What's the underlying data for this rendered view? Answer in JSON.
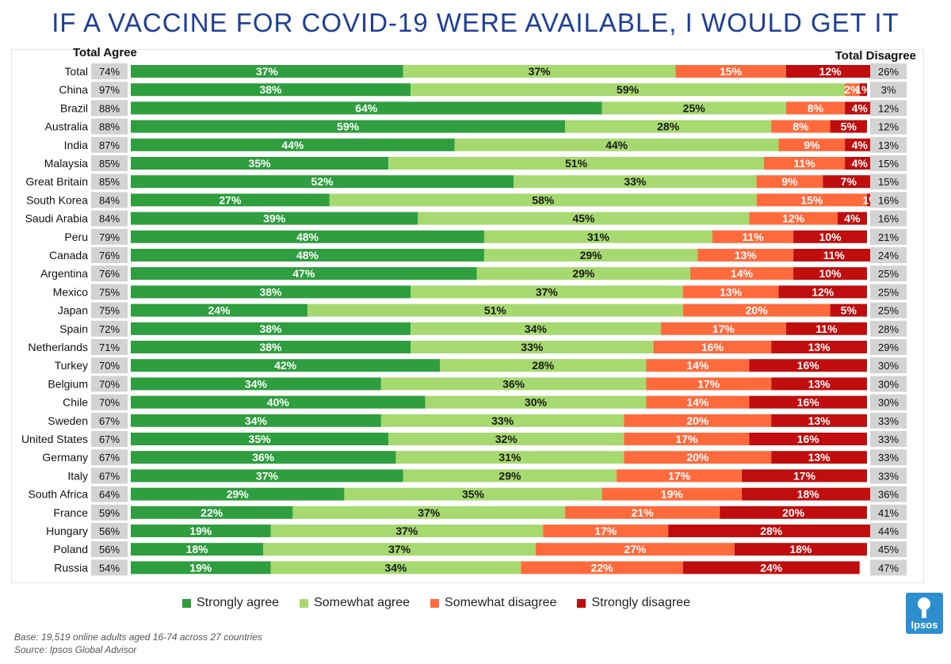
{
  "title": "IF A VACCINE FOR COVID-19 WERE AVAILABLE, I WOULD GET IT",
  "header_total_agree": "Total Agree",
  "header_total_disagree": "Total Disagree",
  "legend": [
    {
      "label": "Strongly agree",
      "color": "#2e9e3e"
    },
    {
      "label": "Somewhat agree",
      "color": "#a6d96f"
    },
    {
      "label": "Somewhat disagree",
      "color": "#ff6a3d"
    },
    {
      "label": "Strongly disagree",
      "color": "#c00d0d"
    }
  ],
  "footnote_base": "Base: 19,519 online adults aged 16-74 across 27 countries",
  "footnote_source": "Source: Ipsos Global Advisor",
  "logo_text": "Ipsos",
  "chart_data": {
    "type": "bar",
    "orientation": "horizontal",
    "stacked": true,
    "xlim": [
      0,
      100
    ],
    "categories": [
      "Total",
      "China",
      "Brazil",
      "Australia",
      "India",
      "Malaysia",
      "Great Britain",
      "South Korea",
      "Saudi Arabia",
      "Peru",
      "Canada",
      "Argentina",
      "Mexico",
      "Japan",
      "Spain",
      "Netherlands",
      "Turkey",
      "Belgium",
      "Chile",
      "Sweden",
      "United States",
      "Germany",
      "Italy",
      "South Africa",
      "France",
      "Hungary",
      "Poland",
      "Russia"
    ],
    "total_agree": [
      "74%",
      "97%",
      "88%",
      "88%",
      "87%",
      "85%",
      "85%",
      "84%",
      "84%",
      "79%",
      "76%",
      "76%",
      "75%",
      "75%",
      "72%",
      "71%",
      "70%",
      "70%",
      "70%",
      "67%",
      "67%",
      "67%",
      "67%",
      "64%",
      "59%",
      "56%",
      "56%",
      "54%"
    ],
    "total_disagree": [
      "26%",
      "3%",
      "12%",
      "12%",
      "13%",
      "15%",
      "15%",
      "16%",
      "16%",
      "21%",
      "24%",
      "25%",
      "25%",
      "25%",
      "28%",
      "29%",
      "30%",
      "30%",
      "30%",
      "33%",
      "33%",
      "33%",
      "33%",
      "36%",
      "41%",
      "44%",
      "45%",
      "47%"
    ],
    "series": [
      {
        "name": "Strongly agree",
        "color": "#2e9e3e",
        "values": [
          37,
          38,
          64,
          59,
          44,
          35,
          52,
          27,
          39,
          48,
          48,
          47,
          38,
          24,
          38,
          38,
          42,
          34,
          40,
          34,
          35,
          36,
          37,
          29,
          22,
          19,
          18,
          19
        ]
      },
      {
        "name": "Somewhat agree",
        "color": "#a6d96f",
        "values": [
          37,
          59,
          25,
          28,
          44,
          51,
          33,
          58,
          45,
          31,
          29,
          29,
          37,
          51,
          34,
          33,
          28,
          36,
          30,
          33,
          32,
          31,
          29,
          35,
          37,
          37,
          37,
          34
        ]
      },
      {
        "name": "Somewhat disagree",
        "color": "#ff6a3d",
        "values": [
          15,
          2,
          8,
          8,
          9,
          11,
          9,
          15,
          12,
          11,
          13,
          14,
          13,
          20,
          17,
          16,
          14,
          17,
          14,
          20,
          17,
          20,
          17,
          19,
          21,
          17,
          27,
          22
        ]
      },
      {
        "name": "Strongly disagree",
        "color": "#c00d0d",
        "values": [
          12,
          1,
          4,
          5,
          4,
          4,
          7,
          1,
          4,
          10,
          11,
          10,
          12,
          5,
          11,
          13,
          16,
          13,
          16,
          13,
          16,
          13,
          17,
          18,
          20,
          28,
          18,
          24
        ]
      }
    ]
  }
}
